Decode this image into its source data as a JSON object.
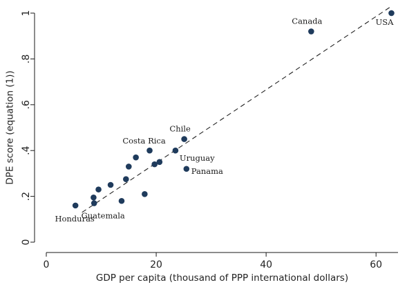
{
  "chart_data": {
    "type": "scatter",
    "xlabel": "GDP per capita (thousand of PPP international dollars)",
    "ylabel": "DPE score (equation (1))",
    "xlim": [
      0,
      64
    ],
    "ylim": [
      0,
      1.0
    ],
    "x_ticks": [
      0,
      20,
      40,
      60
    ],
    "x_tick_labels": [
      "0",
      "20",
      "40",
      "60"
    ],
    "y_ticks": [
      0,
      0.2,
      0.4,
      0.6,
      0.8,
      1.0
    ],
    "y_tick_labels": [
      "0",
      ".2",
      ".4",
      ".6",
      ".8",
      "1"
    ],
    "grid": false,
    "marker_color": "#1f3b5c",
    "points": [
      {
        "x": 62.8,
        "y": 1.0,
        "label": "USA"
      },
      {
        "x": 48.2,
        "y": 0.92,
        "label": "Canada"
      },
      {
        "x": 25.1,
        "y": 0.45,
        "label": "Chile"
      },
      {
        "x": 18.8,
        "y": 0.4,
        "label": "Costa Rica"
      },
      {
        "x": 23.5,
        "y": 0.4,
        "label": "Uruguay"
      },
      {
        "x": 25.5,
        "y": 0.32,
        "label": "Panama"
      },
      {
        "x": 5.3,
        "y": 0.16,
        "label": "Honduras"
      },
      {
        "x": 8.7,
        "y": 0.17,
        "label": "Guatemala"
      },
      {
        "x": 16.3,
        "y": 0.37,
        "label": ""
      },
      {
        "x": 20.6,
        "y": 0.35,
        "label": ""
      },
      {
        "x": 19.7,
        "y": 0.34,
        "label": ""
      },
      {
        "x": 15.0,
        "y": 0.33,
        "label": ""
      },
      {
        "x": 14.5,
        "y": 0.275,
        "label": ""
      },
      {
        "x": 11.7,
        "y": 0.25,
        "label": ""
      },
      {
        "x": 9.5,
        "y": 0.23,
        "label": ""
      },
      {
        "x": 8.6,
        "y": 0.195,
        "label": ""
      },
      {
        "x": 13.7,
        "y": 0.18,
        "label": ""
      },
      {
        "x": 17.9,
        "y": 0.21,
        "label": ""
      }
    ],
    "fit_line": {
      "style": "dashed",
      "x": [
        6.5,
        62.8
      ],
      "y": [
        0.13,
        1.03
      ]
    }
  }
}
